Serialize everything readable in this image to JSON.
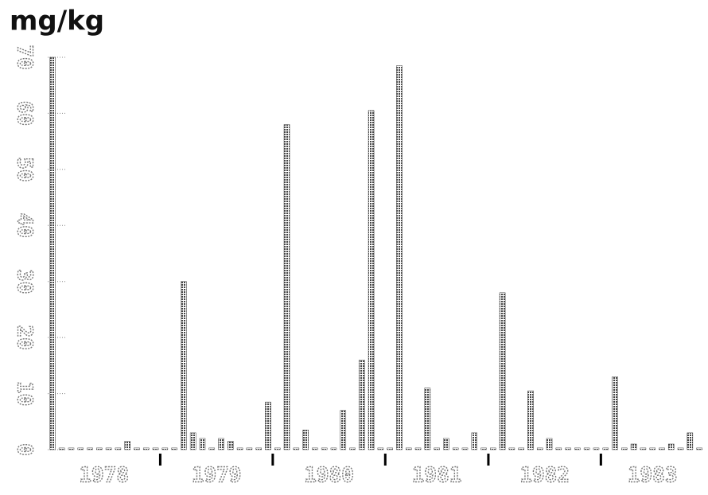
{
  "chart_data": {
    "type": "bar",
    "title": "mg/kg",
    "ylim": [
      0,
      70
    ],
    "yticks": [
      0,
      10,
      20,
      30,
      40,
      50,
      60,
      70
    ],
    "color": "#444",
    "groups": [
      {
        "label": "1978",
        "values": [
          70,
          0.3,
          0.3,
          0.3,
          0.3,
          0.3,
          0.3,
          0.3,
          1.5,
          0.3,
          0.3,
          0.3
        ]
      },
      {
        "label": "1979",
        "values": [
          0.3,
          0.3,
          30,
          3,
          2,
          0.3,
          2,
          1.5,
          0.3,
          0.3,
          0.3,
          8.5
        ]
      },
      {
        "label": "1980",
        "values": [
          0.3,
          58,
          0.3,
          3.5,
          0.3,
          0.3,
          0.3,
          7,
          0.3,
          16,
          60.5,
          0.3
        ]
      },
      {
        "label": "1981",
        "values": [
          0.3,
          68.5,
          0.3,
          0.3,
          11,
          0.3,
          2,
          0.3,
          0.3,
          3,
          0.3
        ]
      },
      {
        "label": "1982",
        "values": [
          0.3,
          28,
          0.3,
          0.3,
          10.5,
          0.3,
          2,
          0.3,
          0.3,
          0.3,
          0.3,
          0.3
        ]
      },
      {
        "label": "1983",
        "values": [
          0.3,
          13,
          0.3,
          1,
          0.3,
          0.3,
          0.3,
          1,
          0.3,
          3,
          0.3
        ]
      }
    ]
  }
}
